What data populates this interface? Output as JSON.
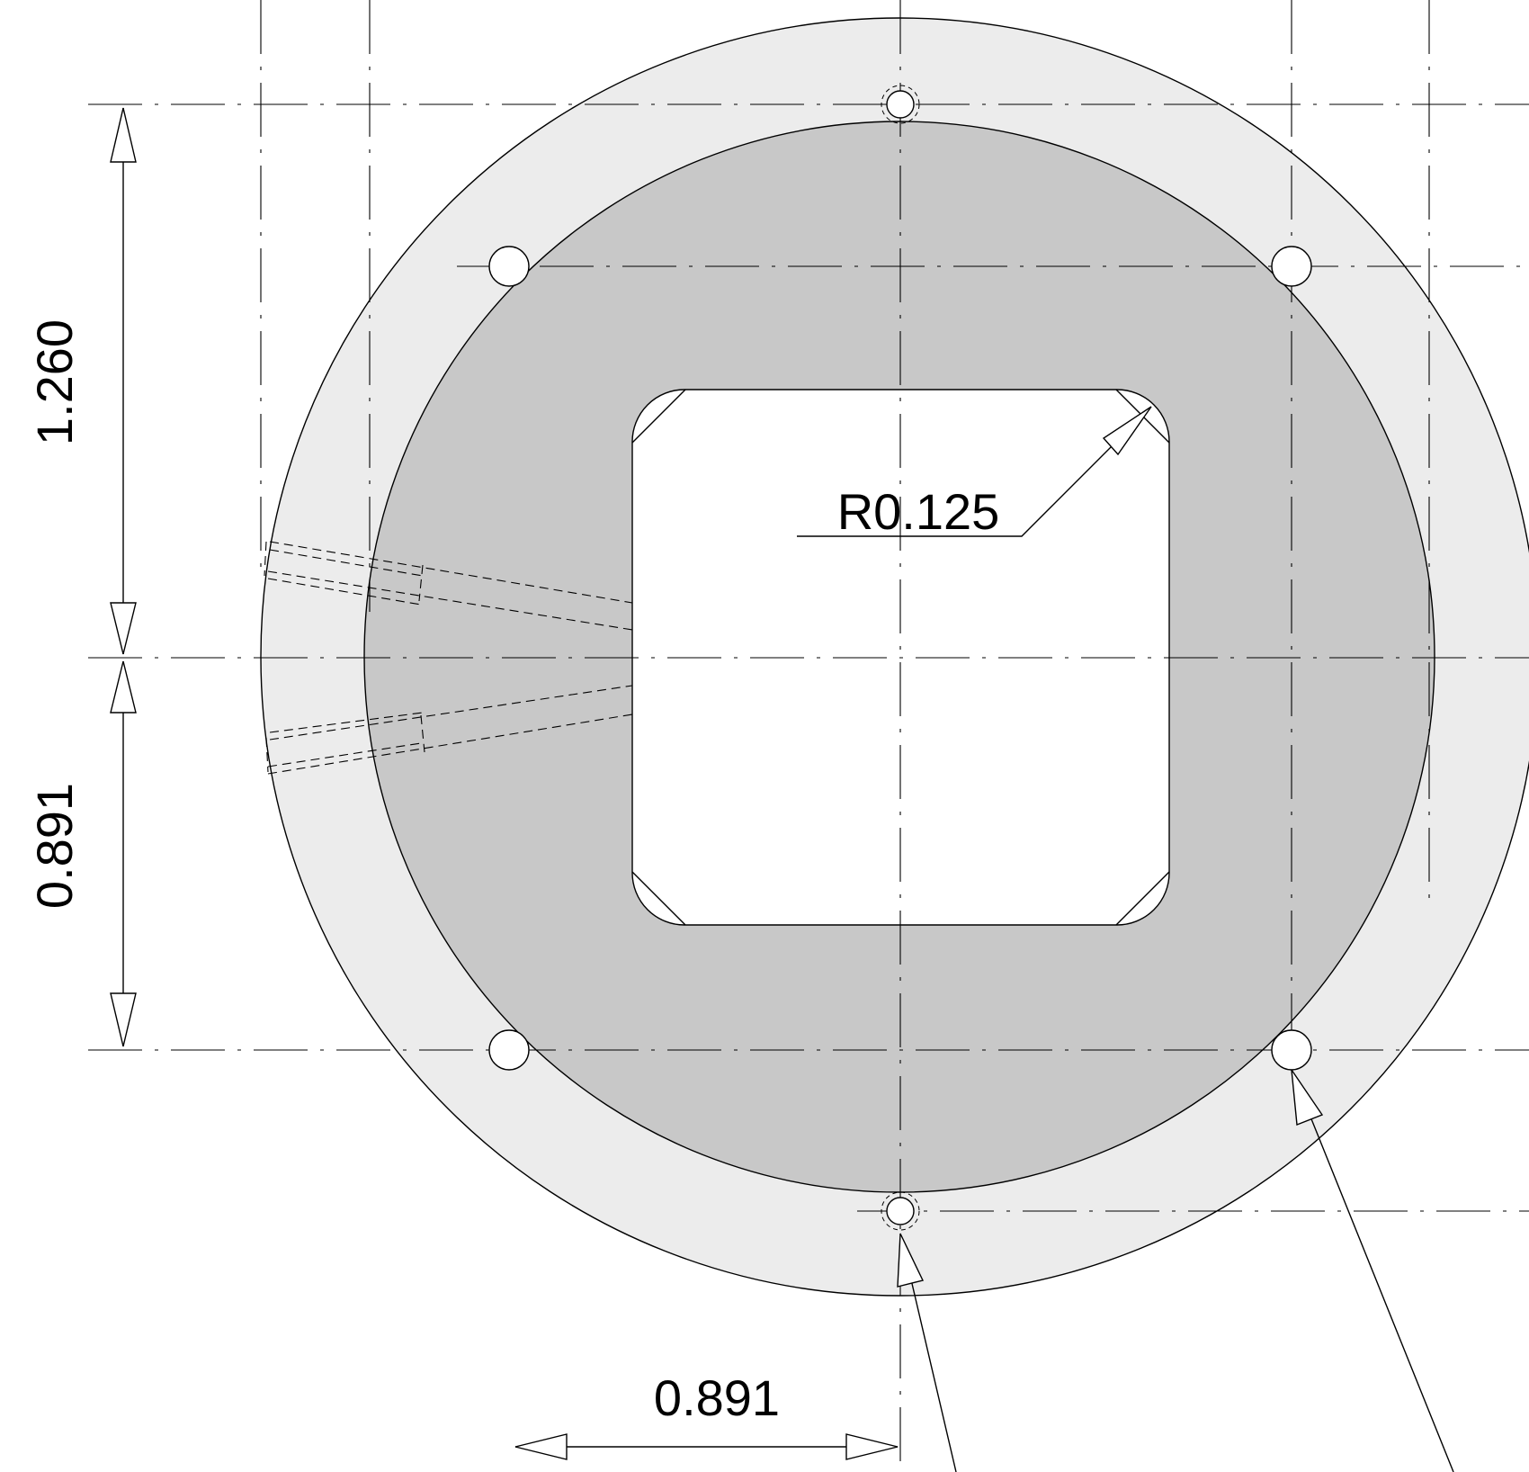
{
  "drawing": {
    "dimensions": {
      "vertical_upper": "1.260",
      "vertical_lower": "0.891",
      "horizontal_bottom": "0.891",
      "corner_radius": "R0.125"
    },
    "colors": {
      "outer_ring": "#ececec",
      "inner_disc": "#c8c8c8",
      "window": "#ffffff",
      "linework": "#000000"
    }
  }
}
